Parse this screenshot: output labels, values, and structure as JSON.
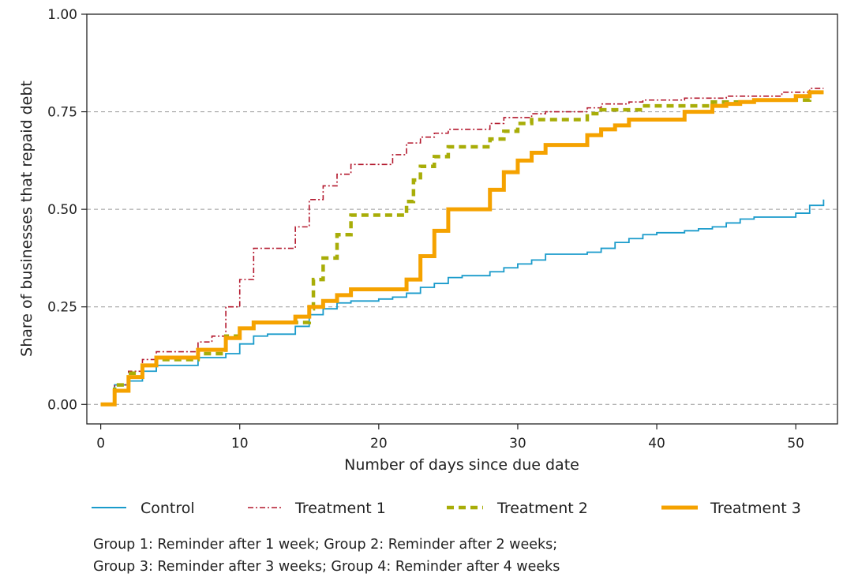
{
  "chart_data": {
    "type": "line",
    "xlabel": "Number of days since due date",
    "ylabel": "Share of businesses that repaid debt",
    "xlim": [
      -1,
      53
    ],
    "ylim": [
      -0.05,
      1.0
    ],
    "x_ticks": [
      0,
      10,
      20,
      30,
      40,
      50
    ],
    "x_tick_labels": [
      "0",
      "10",
      "20",
      "30",
      "40",
      "50"
    ],
    "y_ticks": [
      0,
      0.25,
      0.5,
      0.75,
      1.0
    ],
    "y_tick_labels": [
      "0.00",
      "0.25",
      "0.50",
      "0.75",
      "1.00"
    ],
    "gridlines": "horizontal dashed at 0.00, 0.25, 0.50, 0.75",
    "legend_position": "bottom",
    "series": [
      {
        "name": "Control",
        "color": "#1a9bcb",
        "style": "solid-thin",
        "points": [
          [
            0,
            0
          ],
          [
            1,
            0.05
          ],
          [
            2,
            0.06
          ],
          [
            3,
            0.085
          ],
          [
            4,
            0.1
          ],
          [
            7,
            0.12
          ],
          [
            9,
            0.13
          ],
          [
            10,
            0.155
          ],
          [
            11,
            0.175
          ],
          [
            12,
            0.18
          ],
          [
            14,
            0.2
          ],
          [
            15,
            0.23
          ],
          [
            16,
            0.245
          ],
          [
            17,
            0.26
          ],
          [
            18,
            0.265
          ],
          [
            20,
            0.27
          ],
          [
            21,
            0.275
          ],
          [
            22,
            0.285
          ],
          [
            23,
            0.3
          ],
          [
            24,
            0.31
          ],
          [
            25,
            0.325
          ],
          [
            26,
            0.33
          ],
          [
            28,
            0.34
          ],
          [
            29,
            0.35
          ],
          [
            30,
            0.36
          ],
          [
            31,
            0.37
          ],
          [
            32,
            0.385
          ],
          [
            35,
            0.39
          ],
          [
            36,
            0.4
          ],
          [
            37,
            0.415
          ],
          [
            38,
            0.425
          ],
          [
            39,
            0.435
          ],
          [
            40,
            0.44
          ],
          [
            42,
            0.445
          ],
          [
            43,
            0.45
          ],
          [
            44,
            0.455
          ],
          [
            45,
            0.465
          ],
          [
            46,
            0.475
          ],
          [
            47,
            0.48
          ],
          [
            50,
            0.49
          ],
          [
            51,
            0.51
          ],
          [
            52,
            0.525
          ]
        ]
      },
      {
        "name": "Treatment 1",
        "color": "#b3182d",
        "style": "dash-dot",
        "points": [
          [
            0,
            0
          ],
          [
            1,
            0.05
          ],
          [
            2,
            0.085
          ],
          [
            3,
            0.115
          ],
          [
            4,
            0.135
          ],
          [
            7,
            0.16
          ],
          [
            8,
            0.175
          ],
          [
            9,
            0.25
          ],
          [
            10,
            0.32
          ],
          [
            11,
            0.4
          ],
          [
            14,
            0.455
          ],
          [
            15,
            0.525
          ],
          [
            16,
            0.56
          ],
          [
            17,
            0.59
          ],
          [
            18,
            0.615
          ],
          [
            21,
            0.64
          ],
          [
            22,
            0.67
          ],
          [
            23,
            0.685
          ],
          [
            24,
            0.695
          ],
          [
            25,
            0.705
          ],
          [
            28,
            0.72
          ],
          [
            29,
            0.735
          ],
          [
            31,
            0.745
          ],
          [
            32,
            0.75
          ],
          [
            35,
            0.76
          ],
          [
            36,
            0.77
          ],
          [
            38,
            0.775
          ],
          [
            39,
            0.78
          ],
          [
            42,
            0.785
          ],
          [
            45,
            0.79
          ],
          [
            49,
            0.8
          ],
          [
            51,
            0.81
          ],
          [
            52,
            0.81
          ]
        ]
      },
      {
        "name": "Treatment 2",
        "color": "#a8ad08",
        "style": "dashed-thick",
        "points": [
          [
            0,
            0
          ],
          [
            1,
            0.05
          ],
          [
            2,
            0.08
          ],
          [
            3,
            0.1
          ],
          [
            4,
            0.115
          ],
          [
            7,
            0.13
          ],
          [
            9,
            0.175
          ],
          [
            10,
            0.195
          ],
          [
            11,
            0.21
          ],
          [
            15,
            0.245
          ],
          [
            15.3,
            0.32
          ],
          [
            16,
            0.375
          ],
          [
            17,
            0.435
          ],
          [
            18,
            0.485
          ],
          [
            22,
            0.52
          ],
          [
            22.5,
            0.575
          ],
          [
            23,
            0.61
          ],
          [
            24,
            0.635
          ],
          [
            25,
            0.66
          ],
          [
            28,
            0.68
          ],
          [
            29,
            0.7
          ],
          [
            30,
            0.72
          ],
          [
            31,
            0.73
          ],
          [
            35,
            0.745
          ],
          [
            36,
            0.755
          ],
          [
            39,
            0.765
          ],
          [
            44,
            0.775
          ],
          [
            47,
            0.78
          ],
          [
            51,
            0.8
          ],
          [
            52,
            0.8
          ]
        ]
      },
      {
        "name": "Treatment 3",
        "color": "#f5a200",
        "style": "solid-thick",
        "points": [
          [
            0,
            0
          ],
          [
            1,
            0.035
          ],
          [
            2,
            0.07
          ],
          [
            3,
            0.1
          ],
          [
            4,
            0.12
          ],
          [
            7,
            0.14
          ],
          [
            9,
            0.17
          ],
          [
            10,
            0.195
          ],
          [
            11,
            0.21
          ],
          [
            14,
            0.225
          ],
          [
            15,
            0.25
          ],
          [
            16,
            0.265
          ],
          [
            17,
            0.28
          ],
          [
            18,
            0.295
          ],
          [
            22,
            0.32
          ],
          [
            23,
            0.38
          ],
          [
            24,
            0.445
          ],
          [
            25,
            0.5
          ],
          [
            28,
            0.55
          ],
          [
            29,
            0.595
          ],
          [
            30,
            0.625
          ],
          [
            31,
            0.645
          ],
          [
            32,
            0.665
          ],
          [
            35,
            0.69
          ],
          [
            36,
            0.705
          ],
          [
            37,
            0.715
          ],
          [
            38,
            0.73
          ],
          [
            42,
            0.75
          ],
          [
            44,
            0.765
          ],
          [
            45,
            0.77
          ],
          [
            46,
            0.775
          ],
          [
            47,
            0.78
          ],
          [
            50,
            0.79
          ],
          [
            51,
            0.8
          ],
          [
            52,
            0.8
          ]
        ]
      }
    ]
  },
  "legend": {
    "control": "Control",
    "t1": "Treatment 1",
    "t2": "Treatment 2",
    "t3": "Treatment 3"
  },
  "caption": {
    "line1": "Group 1: Reminder after 1 week; Group 2: Reminder after 2 weeks;",
    "line2": "Group 3: Reminder after 3 weeks; Group 4: Reminder after 4 weeks"
  }
}
